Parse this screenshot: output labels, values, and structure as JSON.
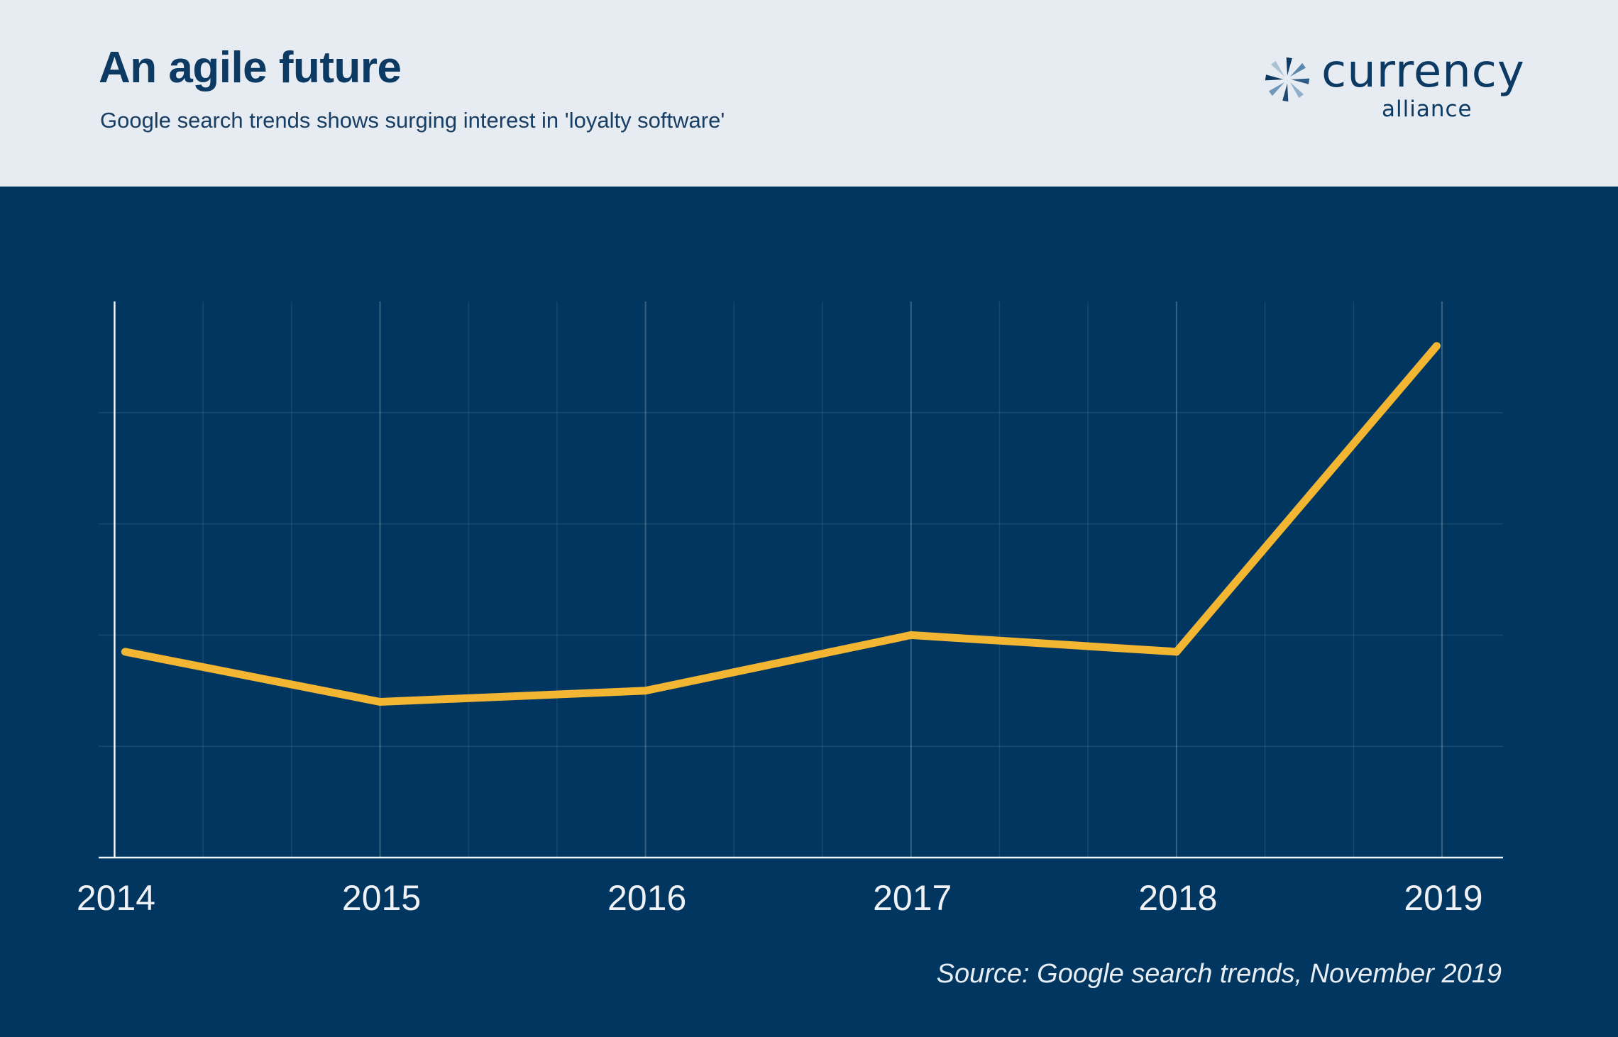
{
  "header": {
    "title": "An agile future",
    "subtitle": "Google search trends shows surging interest in 'loyalty software'"
  },
  "logo": {
    "word": "currency",
    "sub": "alliance",
    "icon": "star-burst-icon"
  },
  "source": "Source: Google search trends, November 2019",
  "colors": {
    "header_bg": "#e6ecf1",
    "plot_bg": "#00365f",
    "line": "#f2b632",
    "title": "#0d3a63"
  },
  "chart_data": {
    "type": "line",
    "title": "An agile future",
    "subtitle": "Google search trends shows surging interest in 'loyalty software'",
    "xlabel": "",
    "ylabel": "",
    "x": [
      2014,
      2015,
      2016,
      2017,
      2018,
      2019
    ],
    "x_tick_labels": [
      "2014",
      "2015",
      "2016",
      "2017",
      "2018",
      "2019"
    ],
    "series": [
      {
        "values": [
          37,
          28,
          30,
          40,
          37,
          92
        ],
        "color": "#f2b632"
      }
    ],
    "x_range": [
      2013.94,
      2019.23
    ],
    "ylim": [
      0,
      100
    ],
    "y_gridlines": [
      20,
      40,
      60,
      80
    ],
    "grid": true,
    "y_tick_labels_shown": false,
    "legend": "none"
  }
}
